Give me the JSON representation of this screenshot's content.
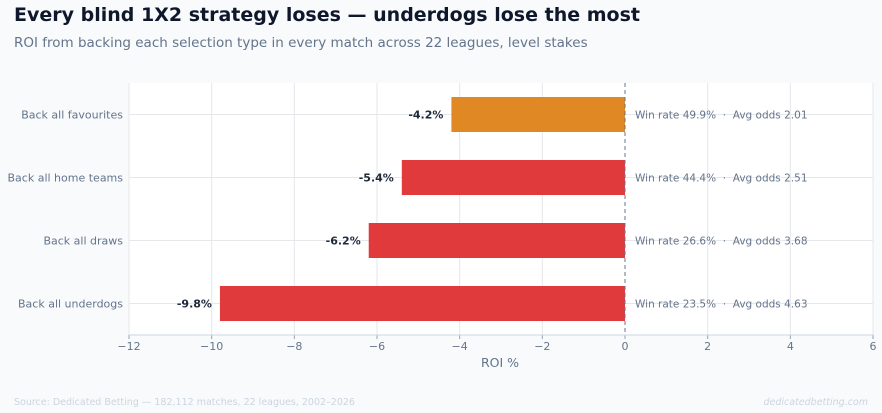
{
  "header": {
    "title": "Every blind 1X2 strategy loses — underdogs lose the most",
    "subtitle": "ROI from backing each selection type in every match across 22 leagues, level stakes"
  },
  "footer": {
    "source": "Source: Dedicated Betting — 182,112 matches, 22 leagues, 2002–2026",
    "brand": "dedicatedbetting.com"
  },
  "colors": {
    "favourites": "#e08823",
    "others": "#e03a3c",
    "grid": "#e5e7eb",
    "zero_line": "#64748b"
  },
  "chart_data": {
    "type": "bar",
    "orientation": "horizontal",
    "title": "Every blind 1X2 strategy loses — underdogs lose the most",
    "subtitle": "ROI from backing each selection type in every match across 22 leagues, level stakes",
    "xlabel": "ROI %",
    "ylabel": "",
    "xlim": [
      -12,
      6
    ],
    "xticks": [
      -12,
      -10,
      -8,
      -6,
      -4,
      -2,
      0,
      2,
      4,
      6
    ],
    "grid": true,
    "categories": [
      "Back all favourites",
      "Back all home teams",
      "Back all draws",
      "Back all underdogs"
    ],
    "values": [
      -4.2,
      -5.4,
      -6.2,
      -9.8
    ],
    "value_labels": [
      "-4.2%",
      "-5.4%",
      "-6.2%",
      "-9.8%"
    ],
    "annotations": [
      "Win rate 49.9%  ·  Avg odds 2.01",
      "Win rate 44.4%  ·  Avg odds 2.51",
      "Win rate 26.6%  ·  Avg odds 3.68",
      "Win rate 23.5%  ·  Avg odds 4.63"
    ]
  }
}
